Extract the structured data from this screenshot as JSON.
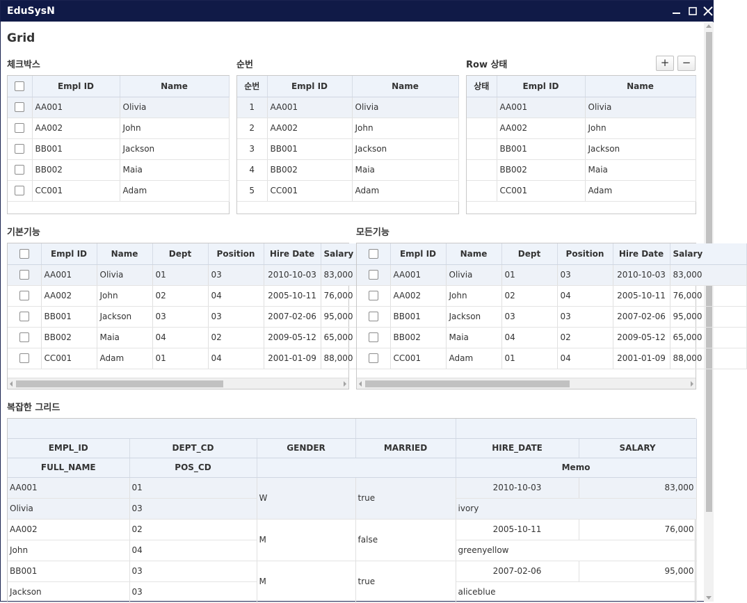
{
  "window": {
    "title": "EduSysN"
  },
  "page": {
    "title": "Grid"
  },
  "sections": {
    "checkbox": "체크박스",
    "seq": "순번",
    "rowstate": "Row 상태",
    "basic": "기본기능",
    "all": "모든기능",
    "complex": "복잡한 그리드"
  },
  "buttons": {
    "add": "+",
    "remove": "−"
  },
  "headers": {
    "empl_id": "Empl ID",
    "name": "Name",
    "seq": "순번",
    "state": "상태",
    "dept": "Dept",
    "position": "Position",
    "hire_date": "Hire Date",
    "salary": "Salary"
  },
  "rows": [
    {
      "seq": "1",
      "id": "AA001",
      "name": "Olivia",
      "dept": "01",
      "pos": "03",
      "hire": "2010-10-03",
      "salary": "83,000"
    },
    {
      "seq": "2",
      "id": "AA002",
      "name": "John",
      "dept": "02",
      "pos": "04",
      "hire": "2005-10-11",
      "salary": "76,000"
    },
    {
      "seq": "3",
      "id": "BB001",
      "name": "Jackson",
      "dept": "03",
      "pos": "03",
      "hire": "2007-02-06",
      "salary": "95,000"
    },
    {
      "seq": "4",
      "id": "BB002",
      "name": "Maia",
      "dept": "04",
      "pos": "02",
      "hire": "2009-05-12",
      "salary": "65,000"
    },
    {
      "seq": "5",
      "id": "CC001",
      "name": "Adam",
      "dept": "01",
      "pos": "04",
      "hire": "2001-01-09",
      "salary": "88,000"
    }
  ],
  "complex": {
    "headers": {
      "empl_id": "EMPL_ID",
      "dept_cd": "DEPT_CD",
      "gender": "GENDER",
      "married": "MARRIED",
      "hire_date": "HIRE_DATE",
      "salary": "SALARY",
      "full_name": "FULL_NAME",
      "pos_cd": "POS_CD",
      "memo": "Memo"
    },
    "rows": [
      {
        "id": "AA001",
        "dept": "01",
        "name": "Olivia",
        "pos": "03",
        "gender": "W",
        "married": "true",
        "hire": "2010-10-03",
        "salary": "83,000",
        "memo": "ivory"
      },
      {
        "id": "AA002",
        "dept": "02",
        "name": "John",
        "pos": "04",
        "gender": "M",
        "married": "false",
        "hire": "2005-10-11",
        "salary": "76,000",
        "memo": "greenyellow"
      },
      {
        "id": "BB001",
        "dept": "03",
        "name": "Jackson",
        "pos": "03",
        "gender": "M",
        "married": "true",
        "hire": "2007-02-06",
        "salary": "95,000",
        "memo": "aliceblue"
      }
    ]
  }
}
